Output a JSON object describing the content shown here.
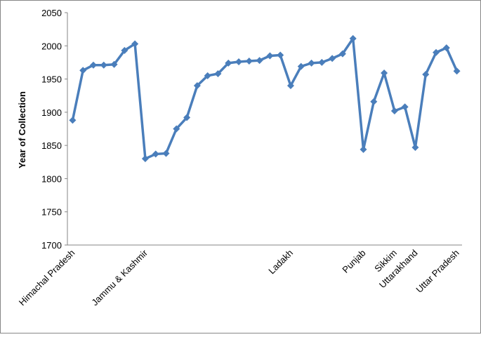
{
  "chart_data": {
    "type": "line",
    "y_label": "Year of Collection",
    "categories": [
      "Himachal Pradesh",
      null,
      null,
      null,
      null,
      null,
      null,
      "Jammu & Kashmir",
      null,
      null,
      null,
      null,
      null,
      null,
      null,
      null,
      null,
      null,
      null,
      null,
      null,
      "Ladakh",
      null,
      null,
      null,
      null,
      null,
      null,
      "Punjab",
      null,
      null,
      "Sikkim",
      null,
      "Uttarakhand",
      null,
      null,
      null,
      "Uttar Pradesh"
    ],
    "series": [
      {
        "name": "Year of Collection",
        "color": "#4a7ebb",
        "values": [
          1888,
          1963,
          1971,
          1971,
          1972,
          1993,
          2003,
          1830,
          1837,
          1838,
          1875,
          1892,
          1940,
          1955,
          1958,
          1974,
          1976,
          1977,
          1978,
          1985,
          1986,
          1940,
          1969,
          1974,
          1975,
          1981,
          1988,
          2011,
          1844,
          1916,
          1959,
          1902,
          1908,
          1847,
          1957,
          1990,
          1997,
          1962
        ]
      }
    ],
    "ylim": [
      1700,
      2050
    ],
    "yticks": [
      1700,
      1750,
      1800,
      1850,
      1900,
      1950,
      2000,
      2050
    ],
    "grid": false
  }
}
